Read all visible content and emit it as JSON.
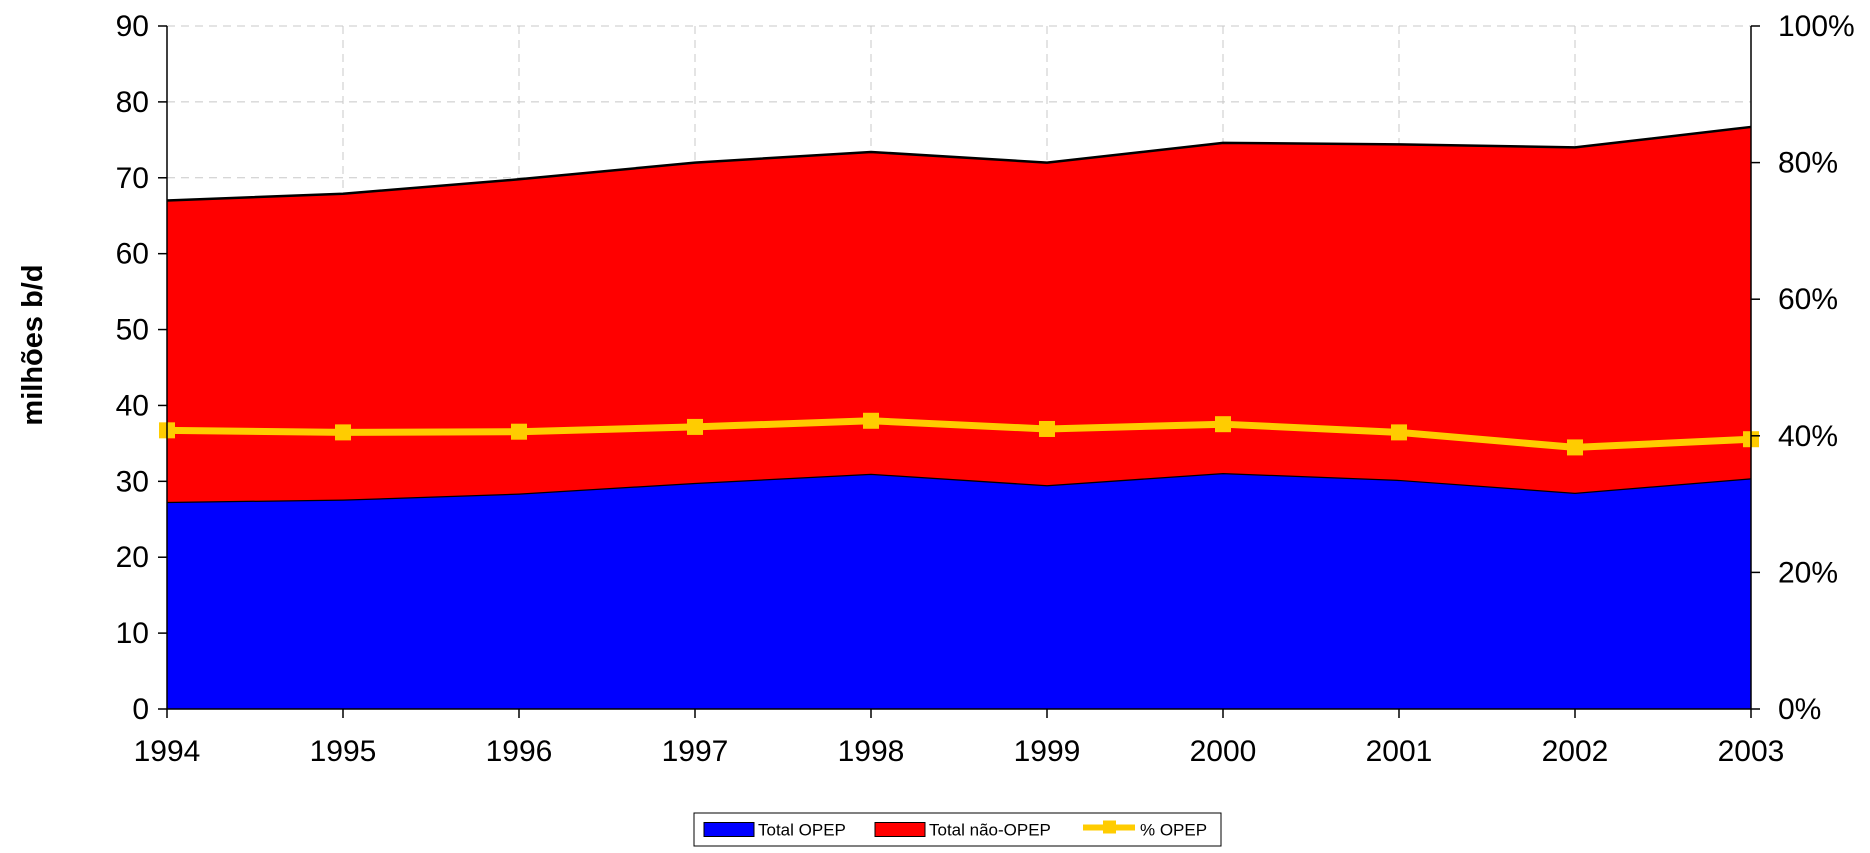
{
  "chart_data": {
    "type": "area",
    "title": "",
    "xlabel": "",
    "ylabel": "milhões b/d",
    "x": [
      "1994",
      "1995",
      "1996",
      "1997",
      "1998",
      "1999",
      "2000",
      "2001",
      "2002",
      "2003"
    ],
    "ylim": [
      0,
      90
    ],
    "yticks": [
      "0",
      "10",
      "20",
      "30",
      "40",
      "50",
      "60",
      "70",
      "80",
      "90"
    ],
    "y2lim": [
      0,
      100
    ],
    "y2ticks": [
      "0%",
      "20%",
      "40%",
      "60%",
      "80%",
      "100%"
    ],
    "grid": true,
    "stacked": true,
    "legend_position": "bottom-center",
    "series": [
      {
        "name": "Total OPEP",
        "type": "area",
        "axis": "left",
        "color": "#0000ff",
        "values": [
          27.3,
          27.6,
          28.4,
          29.8,
          31.0,
          29.5,
          31.1,
          30.2,
          28.5,
          30.4
        ]
      },
      {
        "name": "Total não-OPEP",
        "type": "area",
        "axis": "left",
        "color": "#ff0000",
        "values": [
          39.7,
          40.3,
          41.4,
          42.2,
          42.4,
          42.5,
          43.5,
          44.2,
          45.5,
          46.3
        ]
      },
      {
        "name": "% OPEP",
        "type": "line",
        "axis": "right",
        "color": "#ffcc00",
        "values": [
          40.8,
          40.5,
          40.6,
          41.3,
          42.2,
          41.0,
          41.7,
          40.5,
          38.3,
          39.5
        ]
      }
    ]
  }
}
